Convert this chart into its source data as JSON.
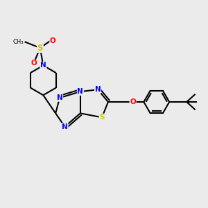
{
  "background_color": "#ebebeb",
  "figsize": [
    3.0,
    3.0
  ],
  "dpi": 100,
  "atom_colors": {
    "N": "#0000ff",
    "S": "#cccc00",
    "O": "#ff0000",
    "C": "#000000"
  },
  "bond_color": "#000000",
  "bond_width": 1.5,
  "font_size_atoms": 7.5
}
